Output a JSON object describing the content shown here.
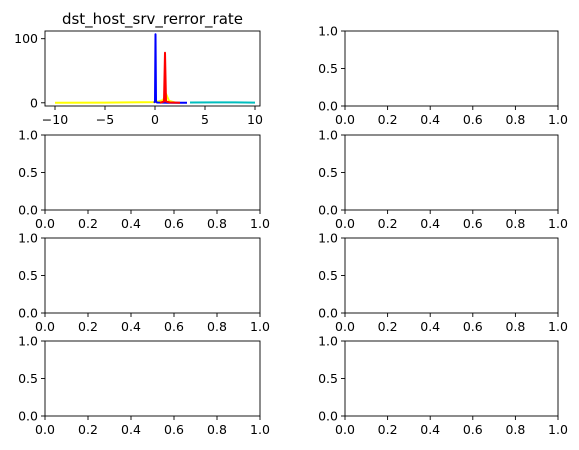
{
  "chart_data": [
    {
      "type": "line",
      "title": "dst_host_srv_rerror_rate",
      "xlabel": "",
      "ylabel": "",
      "xlim": [
        -11,
        10.5
      ],
      "ylim": [
        -5,
        112
      ],
      "xticks": [
        -10,
        -5,
        0,
        5,
        10
      ],
      "yticks": [
        0,
        100
      ],
      "grid": false,
      "series": [
        {
          "color": "#ffff00",
          "x": [
            -10,
            -5,
            0,
            0.8,
            1.1,
            1.4,
            2
          ],
          "y": [
            0,
            0.3,
            1,
            4,
            14,
            3,
            0.5
          ]
        },
        {
          "color": "#0000ff",
          "x": [
            -0.1,
            0.0,
            0.05,
            0.1,
            0.2,
            1.5,
            3.2
          ],
          "y": [
            0,
            2,
            107,
            2,
            0.5,
            0,
            0
          ]
        },
        {
          "color": "#ff0000",
          "x": [
            0.5,
            0.9,
            1.0,
            1.1,
            1.5,
            2.5
          ],
          "y": [
            0,
            2,
            78,
            2,
            0.5,
            0
          ]
        },
        {
          "color": "#00bfbf",
          "x": [
            3.5,
            6,
            8,
            10
          ],
          "y": [
            0.4,
            0.6,
            0.6,
            0.2
          ]
        }
      ]
    },
    {
      "type": "line",
      "xlim": [
        0,
        1
      ],
      "ylim": [
        0,
        1
      ],
      "xticks": [
        0.0,
        0.2,
        0.4,
        0.6,
        0.8,
        1.0
      ],
      "yticks": [
        0.0,
        0.5,
        1.0
      ],
      "series": []
    },
    {
      "type": "line",
      "xlim": [
        0,
        1
      ],
      "ylim": [
        0,
        1
      ],
      "xticks": [
        0.0,
        0.2,
        0.4,
        0.6,
        0.8,
        1.0
      ],
      "yticks": [
        0.0,
        0.5,
        1.0
      ],
      "series": []
    },
    {
      "type": "line",
      "xlim": [
        0,
        1
      ],
      "ylim": [
        0,
        1
      ],
      "xticks": [
        0.0,
        0.2,
        0.4,
        0.6,
        0.8,
        1.0
      ],
      "yticks": [
        0.0,
        0.5,
        1.0
      ],
      "series": []
    },
    {
      "type": "line",
      "xlim": [
        0,
        1
      ],
      "ylim": [
        0,
        1
      ],
      "xticks": [
        0.0,
        0.2,
        0.4,
        0.6,
        0.8,
        1.0
      ],
      "yticks": [
        0.0,
        0.5,
        1.0
      ],
      "series": []
    },
    {
      "type": "line",
      "xlim": [
        0,
        1
      ],
      "ylim": [
        0,
        1
      ],
      "xticks": [
        0.0,
        0.2,
        0.4,
        0.6,
        0.8,
        1.0
      ],
      "yticks": [
        0.0,
        0.5,
        1.0
      ],
      "series": []
    },
    {
      "type": "line",
      "xlim": [
        0,
        1
      ],
      "ylim": [
        0,
        1
      ],
      "xticks": [
        0.0,
        0.2,
        0.4,
        0.6,
        0.8,
        1.0
      ],
      "yticks": [
        0.0,
        0.5,
        1.0
      ],
      "series": []
    },
    {
      "type": "line",
      "xlim": [
        0,
        1
      ],
      "ylim": [
        0,
        1
      ],
      "xticks": [
        0.0,
        0.2,
        0.4,
        0.6,
        0.8,
        1.0
      ],
      "yticks": [
        0.0,
        0.5,
        1.0
      ],
      "series": []
    }
  ]
}
